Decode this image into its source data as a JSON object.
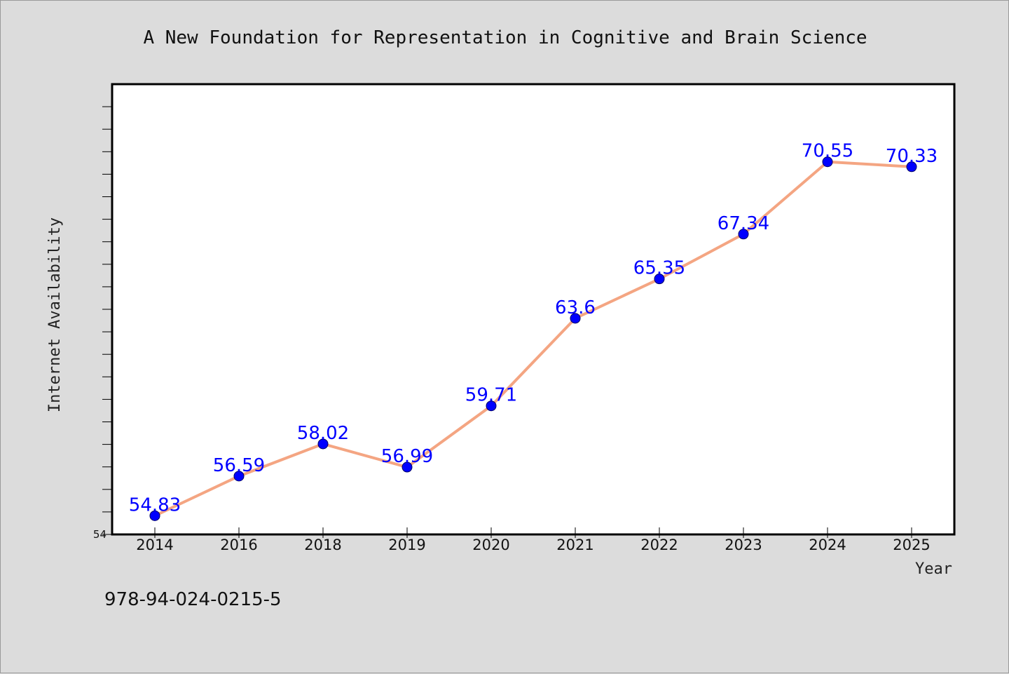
{
  "chart_data": {
    "type": "line",
    "title": "A New Foundation for Representation in Cognitive and Brain Science",
    "xlabel": "Year",
    "ylabel": "Internet Availability",
    "categories": [
      "2014",
      "2016",
      "2018",
      "2019",
      "2020",
      "2021",
      "2022",
      "2023",
      "2024",
      "2025"
    ],
    "series": [
      {
        "values": [
          54.83,
          56.59,
          58.02,
          56.99,
          59.71,
          63.6,
          65.35,
          67.34,
          70.55,
          70.33
        ],
        "labels": [
          "54.83",
          "56.59",
          "58.02",
          "56.99",
          "59.71",
          "63.6",
          "65.35",
          "67.34",
          "70.55",
          "70.33"
        ],
        "line_color": "#f4a582",
        "marker_color": "#0000ff"
      }
    ],
    "ylim": [
      54,
      74
    ],
    "ytick_labels": [
      "54"
    ],
    "grid": false,
    "legend": "none"
  },
  "footer": {
    "isbn": "978-94-024-0215-5"
  },
  "colors": {
    "background": "#dcdcdc",
    "plot_background": "#ffffff",
    "line": "#f4a582",
    "marker": "#0000ff",
    "data_label": "#0000ff"
  }
}
